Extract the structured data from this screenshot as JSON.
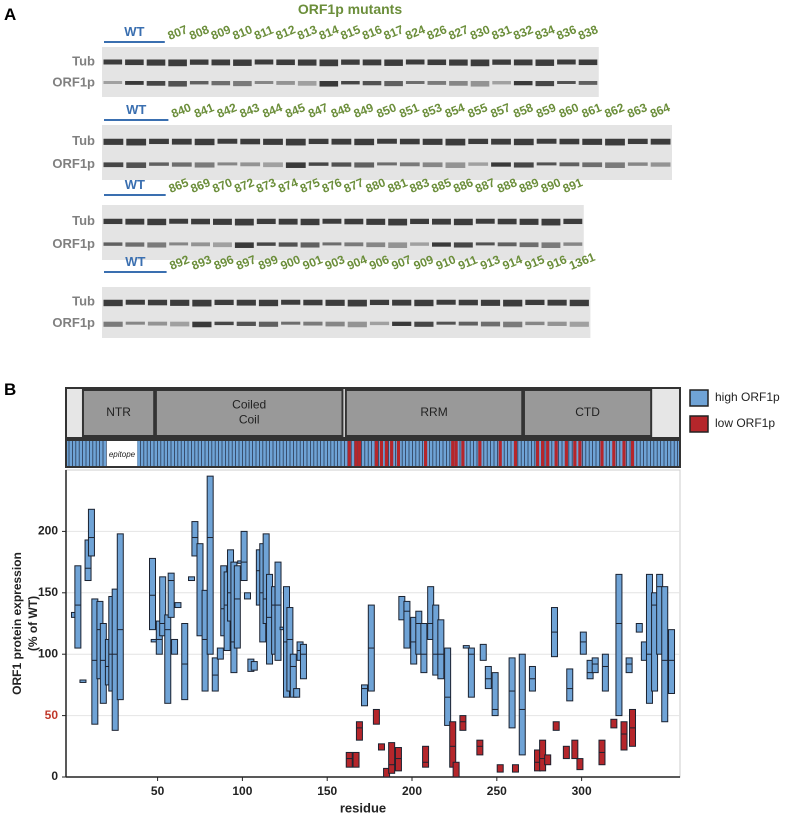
{
  "panel_a": {
    "label": "A",
    "title": "ORF1p mutants",
    "wt_label": "WT",
    "band_labels": [
      "Tub",
      "ORF1p"
    ],
    "rows": [
      {
        "lanes": [
          "807",
          "808",
          "809",
          "810",
          "811",
          "812",
          "813",
          "814",
          "815",
          "816",
          "817",
          "824",
          "826",
          "827",
          "830",
          "831",
          "832",
          "834",
          "836",
          "838"
        ]
      },
      {
        "lanes": [
          "840",
          "841",
          "842",
          "843",
          "844",
          "845",
          "847",
          "848",
          "849",
          "850",
          "851",
          "853",
          "854",
          "855",
          "857",
          "858",
          "859",
          "860",
          "861",
          "862",
          "863",
          "864"
        ]
      },
      {
        "lanes": [
          "865",
          "869",
          "870",
          "872",
          "873",
          "874",
          "875",
          "876",
          "877",
          "880",
          "881",
          "883",
          "885",
          "886",
          "887",
          "888",
          "889",
          "890",
          "891"
        ]
      },
      {
        "lanes": [
          "892",
          "893",
          "896",
          "897",
          "899",
          "900",
          "901",
          "903",
          "904",
          "906",
          "907",
          "909",
          "910",
          "911",
          "913",
          "914",
          "915",
          "916",
          "1361"
        ]
      }
    ]
  },
  "chart_data": {
    "type": "range_bar",
    "panel_label": "B",
    "domains": [
      {
        "label": [
          "NTR"
        ],
        "start": 6,
        "end": 48
      },
      {
        "label": [
          "Coiled",
          "Coil"
        ],
        "start": 49,
        "end": 159
      },
      {
        "label": [
          "RRM"
        ],
        "start": 161,
        "end": 265
      },
      {
        "label": [
          "CTD"
        ],
        "start": 266,
        "end": 341
      }
    ],
    "epitope": {
      "label": "epitope",
      "start": 20,
      "end": 38
    },
    "xlabel": "residue",
    "ylabel": [
      "ORF1 protein expression",
      "(% of WT)"
    ],
    "xlim": [
      -4,
      358
    ],
    "ylim": [
      0,
      250
    ],
    "xticks": [
      50,
      100,
      150,
      200,
      250,
      300
    ],
    "yticks": [
      0,
      50,
      100,
      150,
      200
    ],
    "ytick_colors": [
      "#222222",
      "#c0392b",
      "#222222",
      "#222222",
      "#222222"
    ],
    "grid": true,
    "series": [
      {
        "name": "high ORF1p",
        "color": "#6fa3d6",
        "x": [
          1,
          3,
          6,
          9,
          11,
          13,
          16,
          18,
          21,
          23,
          25,
          28,
          47,
          48,
          51,
          53,
          56,
          58,
          60,
          62,
          66,
          70,
          72,
          75,
          78,
          81,
          84,
          87,
          89,
          91,
          93,
          95,
          97,
          99,
          101,
          103,
          105,
          107,
          110,
          112,
          114,
          116,
          119,
          121,
          124,
          126,
          128,
          130,
          132,
          134,
          136,
          172,
          176,
          194,
          197,
          201,
          204,
          207,
          211,
          214,
          217,
          221,
          232,
          235,
          242,
          245,
          249,
          259,
          265,
          271,
          284,
          293,
          301,
          305,
          308,
          314,
          322,
          328,
          334,
          337,
          340,
          343,
          346,
          349,
          353
        ],
        "low": [
          130,
          105,
          77,
          160,
          180,
          43,
          80,
          60,
          75,
          70,
          38,
          63,
          120,
          110,
          100,
          115,
          60,
          130,
          100,
          138,
          63,
          160,
          180,
          115,
          70,
          100,
          70,
          96,
          115,
          103,
          127,
          85,
          105,
          174,
          160,
          145,
          86,
          87,
          140,
          110,
          125,
          92,
          100,
          95,
          120,
          65,
          70,
          65,
          65,
          95,
          80,
          58,
          70,
          128,
          105,
          92,
          100,
          85,
          112,
          83,
          80,
          42,
          105,
          65,
          95,
          72,
          50,
          40,
          18,
          70,
          98,
          62,
          100,
          80,
          85,
          70,
          50,
          85,
          118,
          95,
          60,
          70,
          100,
          45,
          68
        ],
        "high": [
          134,
          172,
          79,
          193,
          218,
          145,
          143,
          125,
          112,
          147,
          153,
          198,
          178,
          112,
          127,
          163,
          132,
          166,
          112,
          142,
          125,
          163,
          208,
          190,
          152,
          245,
          97,
          105,
          172,
          167,
          185,
          175,
          172,
          176,
          200,
          150,
          96,
          94,
          185,
          190,
          198,
          165,
          155,
          175,
          122,
          155,
          138,
          100,
          72,
          110,
          108,
          75,
          140,
          147,
          143,
          130,
          135,
          125,
          155,
          140,
          128,
          105,
          107,
          105,
          108,
          90,
          85,
          97,
          100,
          90,
          138,
          88,
          118,
          95,
          97,
          100,
          165,
          97,
          125,
          110,
          165,
          150,
          165,
          155,
          120
        ],
        "median": [
          null,
          140,
          null,
          170,
          195,
          95,
          120,
          95,
          90,
          100,
          100,
          120,
          148,
          null,
          112,
          125,
          120,
          160,
          null,
          null,
          92,
          null,
          195,
          null,
          112,
          195,
          83,
          null,
          137,
          140,
          150,
          110,
          145,
          null,
          175,
          null,
          null,
          null,
          168,
          150,
          145,
          130,
          140,
          140,
          null,
          110,
          112,
          90,
          null,
          103,
          100,
          72,
          105,
          null,
          135,
          110,
          125,
          100,
          125,
          100,
          100,
          65,
          null,
          100,
          null,
          80,
          55,
          70,
          55,
          80,
          118,
          72,
          110,
          85,
          92,
          90,
          125,
          92,
          null,
          null,
          100,
          140,
          155,
          95,
          95
        ]
      },
      {
        "name": "low ORF1p",
        "color": "#b5262b",
        "x": [
          163,
          167,
          169,
          179,
          182,
          185,
          188,
          192,
          208,
          224,
          226,
          230,
          240,
          252,
          261,
          274,
          277,
          280,
          285,
          291,
          296,
          299,
          312,
          319,
          325,
          330
        ],
        "low": [
          8,
          8,
          30,
          43,
          22,
          0,
          3,
          5,
          8,
          8,
          0,
          38,
          18,
          4,
          4,
          5,
          5,
          10,
          38,
          15,
          15,
          6,
          10,
          40,
          22,
          25
        ],
        "high": [
          20,
          20,
          45,
          55,
          27,
          7,
          28,
          24,
          25,
          45,
          12,
          50,
          30,
          10,
          10,
          22,
          30,
          18,
          45,
          25,
          30,
          15,
          30,
          47,
          45,
          55
        ],
        "median": [
          15,
          null,
          40,
          null,
          null,
          null,
          10,
          15,
          12,
          25,
          null,
          45,
          25,
          null,
          null,
          12,
          15,
          null,
          null,
          null,
          null,
          null,
          20,
          null,
          35,
          40
        ]
      }
    ]
  }
}
